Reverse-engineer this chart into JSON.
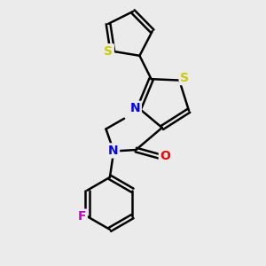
{
  "background_color": "#ebebeb",
  "bond_color": "#000000",
  "atom_colors": {
    "S": "#cccc00",
    "N": "#0000ff",
    "O": "#ff0000",
    "F": "#cc00cc",
    "C": "#000000"
  },
  "bond_width": 1.8,
  "figsize": [
    3.0,
    3.0
  ],
  "dpi": 100
}
